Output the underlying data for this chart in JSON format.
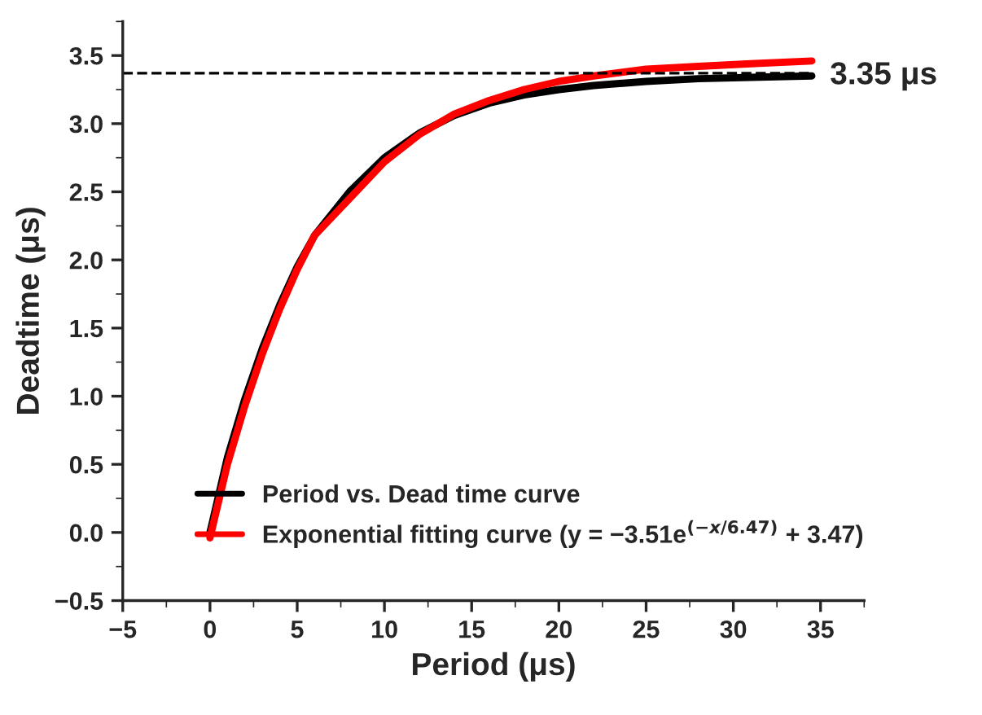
{
  "chart_data": {
    "type": "line",
    "xlabel": "Period (μs)",
    "ylabel": "Deadtime (μs)",
    "series": [
      {
        "name": "Period vs. Dead time curve",
        "color": "#000000",
        "x": [
          0,
          1,
          2,
          3,
          4,
          5,
          6,
          8,
          10,
          12,
          14,
          16,
          18,
          20,
          22,
          25,
          28,
          31,
          34.5
        ],
        "values": [
          0.0,
          0.55,
          0.98,
          1.35,
          1.67,
          1.95,
          2.18,
          2.5,
          2.75,
          2.93,
          3.06,
          3.15,
          3.21,
          3.25,
          3.28,
          3.31,
          3.33,
          3.34,
          3.35
        ]
      },
      {
        "name": "Exponential fitting curve (y = −3.51e$^{(−x/6.47)}$ + 3.47)",
        "color": "#ff0000",
        "x": [
          0,
          1,
          2,
          3,
          4,
          5,
          6,
          8,
          10,
          12,
          14,
          16,
          18,
          20,
          22,
          25,
          28,
          31,
          34.5
        ],
        "values": [
          -0.04,
          0.5,
          0.93,
          1.31,
          1.64,
          1.93,
          2.18,
          2.45,
          2.72,
          2.92,
          3.07,
          3.17,
          3.25,
          3.31,
          3.35,
          3.4,
          3.42,
          3.44,
          3.46
        ]
      }
    ],
    "xlim": [
      -5,
      37.5
    ],
    "xticks": [
      -5,
      0,
      5,
      10,
      15,
      20,
      25,
      30,
      35
    ],
    "ylim": [
      -0.5,
      3.75
    ],
    "yticks": [
      -0.5,
      {
        "value": 0,
        "label": "0.0"
      },
      0.5,
      {
        "value": 1,
        "label": "1.0"
      },
      1.5,
      {
        "value": 2,
        "label": "2.0"
      },
      2.5,
      {
        "value": 3,
        "label": "3.0"
      },
      3.5
    ],
    "ref_lines": [
      {
        "axis": "y",
        "value": 3.37,
        "color": "#000000",
        "line_style": "dashed"
      }
    ],
    "annotations": [
      {
        "text": "3.35 μs",
        "x": 34.5,
        "y": 3.35
      }
    ],
    "legend": "bottom",
    "grid": false,
    "marker": "none",
    "line_style": "solid"
  }
}
